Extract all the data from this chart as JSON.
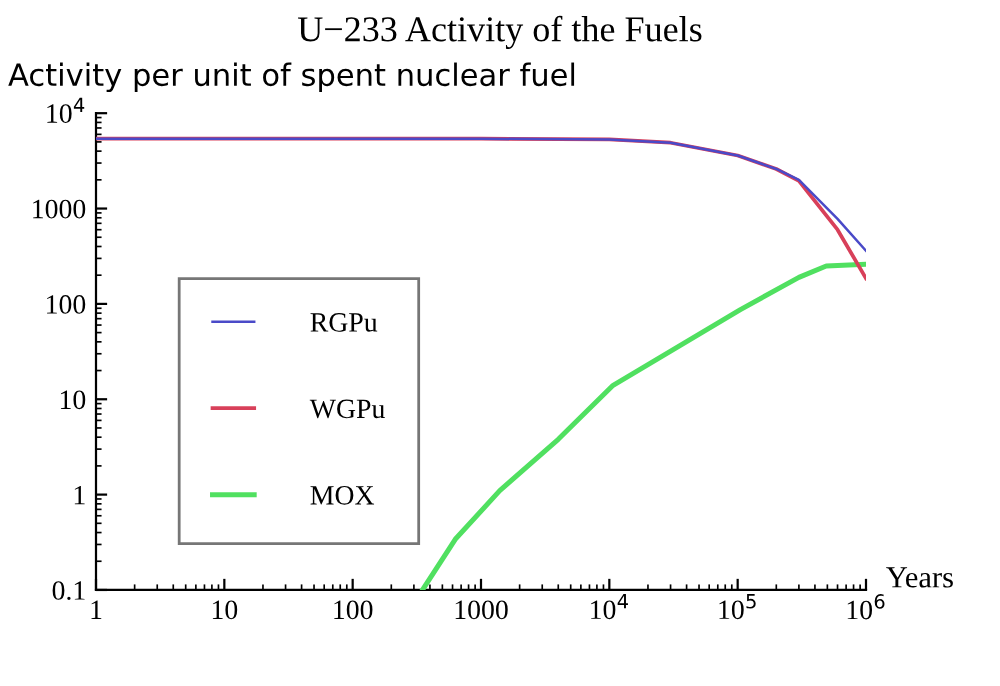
{
  "chart_data": {
    "type": "line",
    "title": "U−233 Activity of the Fuels",
    "subtitle": "Activity per unit of spent nuclear fuel",
    "xlabel": "Years",
    "log": "xy",
    "grid": false,
    "legend": "left",
    "marker": "none",
    "line_style": "solid",
    "xlim": [
      1,
      1000000
    ],
    "xticks": [
      1,
      10,
      100,
      1000,
      {
        "value": 10000,
        "label": "10$^{4}$"
      },
      {
        "value": 100000,
        "label": "10$^{5}$"
      },
      {
        "value": 1000000,
        "label": "10$^{6}$"
      }
    ],
    "ylim": [
      0.1,
      10000
    ],
    "yticks": [
      0.1,
      1,
      10,
      100,
      1000,
      {
        "value": 10000,
        "label": "10$^{4}$"
      }
    ],
    "series": [
      {
        "name": "RGPu",
        "color": "#4a4ac8",
        "x": [
          1,
          10,
          100,
          1000,
          10000,
          30000,
          100000,
          200000,
          300000,
          600000,
          1000000
        ],
        "values": [
          5400,
          5400,
          5400,
          5400,
          5300,
          4900,
          3600,
          2600,
          2000,
          780,
          360
        ]
      },
      {
        "name": "WGPu",
        "color": "#d8405a",
        "x": [
          1,
          10,
          100,
          1000,
          10000,
          30000,
          100000,
          200000,
          300000,
          600000,
          1000000
        ],
        "values": [
          5400,
          5400,
          5400,
          5400,
          5300,
          4900,
          3600,
          2600,
          1950,
          600,
          185
        ]
      },
      {
        "name": "MOX",
        "color": "#50e060",
        "x": [
          350,
          630,
          1400,
          4000,
          10700,
          105000,
          300000,
          490000,
          1000000
        ],
        "values": [
          0.1,
          0.34,
          1.1,
          3.8,
          14,
          87,
          190,
          250,
          260
        ]
      }
    ]
  }
}
